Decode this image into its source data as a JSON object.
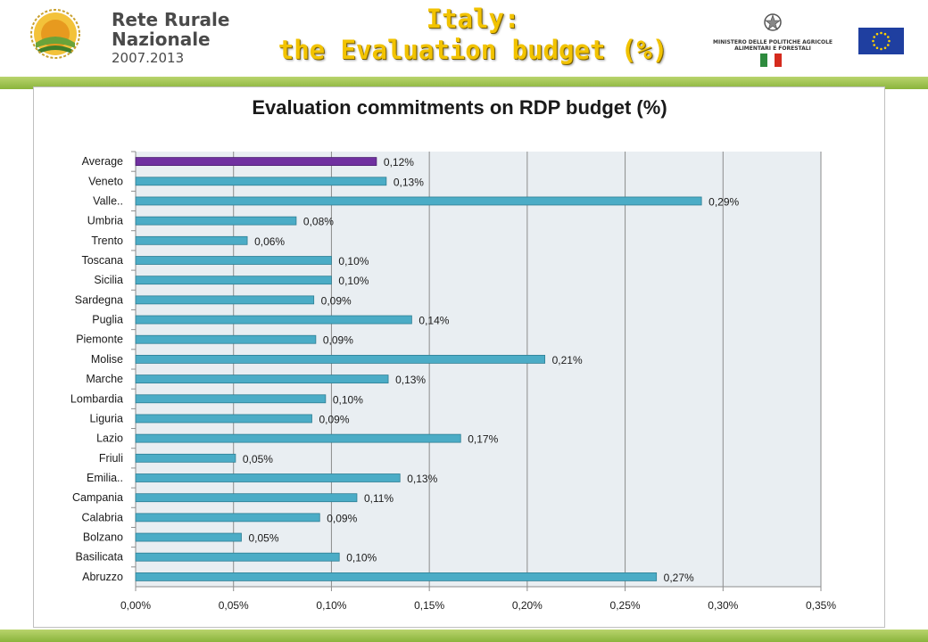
{
  "header": {
    "logo_line1": "Rete Rurale",
    "logo_line2": "Nazionale",
    "logo_line3": "2007.2013",
    "title_line1": "Italy:",
    "title_line2": "the Evaluation budget (%)",
    "ministry_line1": "MINISTERO DELLE POLITICHE AGRICOLE",
    "ministry_line2": "ALIMENTARI E FORESTALI"
  },
  "colors": {
    "bar": "#4bacc6",
    "average_bar": "#7030a0",
    "plot_bg": "#e9eef2",
    "accent_green": "#8ab43c",
    "title_yellow": "#f2c300"
  },
  "chart_data": {
    "type": "bar",
    "orientation": "horizontal",
    "title": "Evaluation commitments on RDP budget (%)",
    "categories": [
      "Average",
      "Veneto",
      "Valle..",
      "Umbria",
      "Trento",
      "Toscana",
      "Sicilia",
      "Sardegna",
      "Puglia",
      "Piemonte",
      "Molise",
      "Marche",
      "Lombardia",
      "Liguria",
      "Lazio",
      "Friuli",
      "Emilia..",
      "Campania",
      "Calabria",
      "Bolzano",
      "Basilicata",
      "Abruzzo"
    ],
    "values": [
      0.123,
      0.128,
      0.289,
      0.082,
      0.057,
      0.1,
      0.1,
      0.091,
      0.141,
      0.092,
      0.209,
      0.129,
      0.097,
      0.09,
      0.166,
      0.051,
      0.135,
      0.113,
      0.094,
      0.054,
      0.104,
      0.266
    ],
    "data_labels": [
      "0,12%",
      "0,13%",
      "0,29%",
      "0,08%",
      "0,06%",
      "0,10%",
      "0,10%",
      "0,09%",
      "0,14%",
      "0,09%",
      "0,21%",
      "0,13%",
      "0,10%",
      "0,09%",
      "0,17%",
      "0,05%",
      "0,13%",
      "0,11%",
      "0,09%",
      "0,05%",
      "0,10%",
      "0,27%"
    ],
    "xlim": [
      0,
      0.35
    ],
    "x_ticks": [
      0,
      0.05,
      0.1,
      0.15,
      0.2,
      0.25,
      0.3,
      0.35
    ],
    "x_tick_labels": [
      "0,00%",
      "0,05%",
      "0,10%",
      "0,15%",
      "0,20%",
      "0,25%",
      "0,30%",
      "0,35%"
    ],
    "highlight_category": "Average",
    "grid": true,
    "legend": "none"
  }
}
